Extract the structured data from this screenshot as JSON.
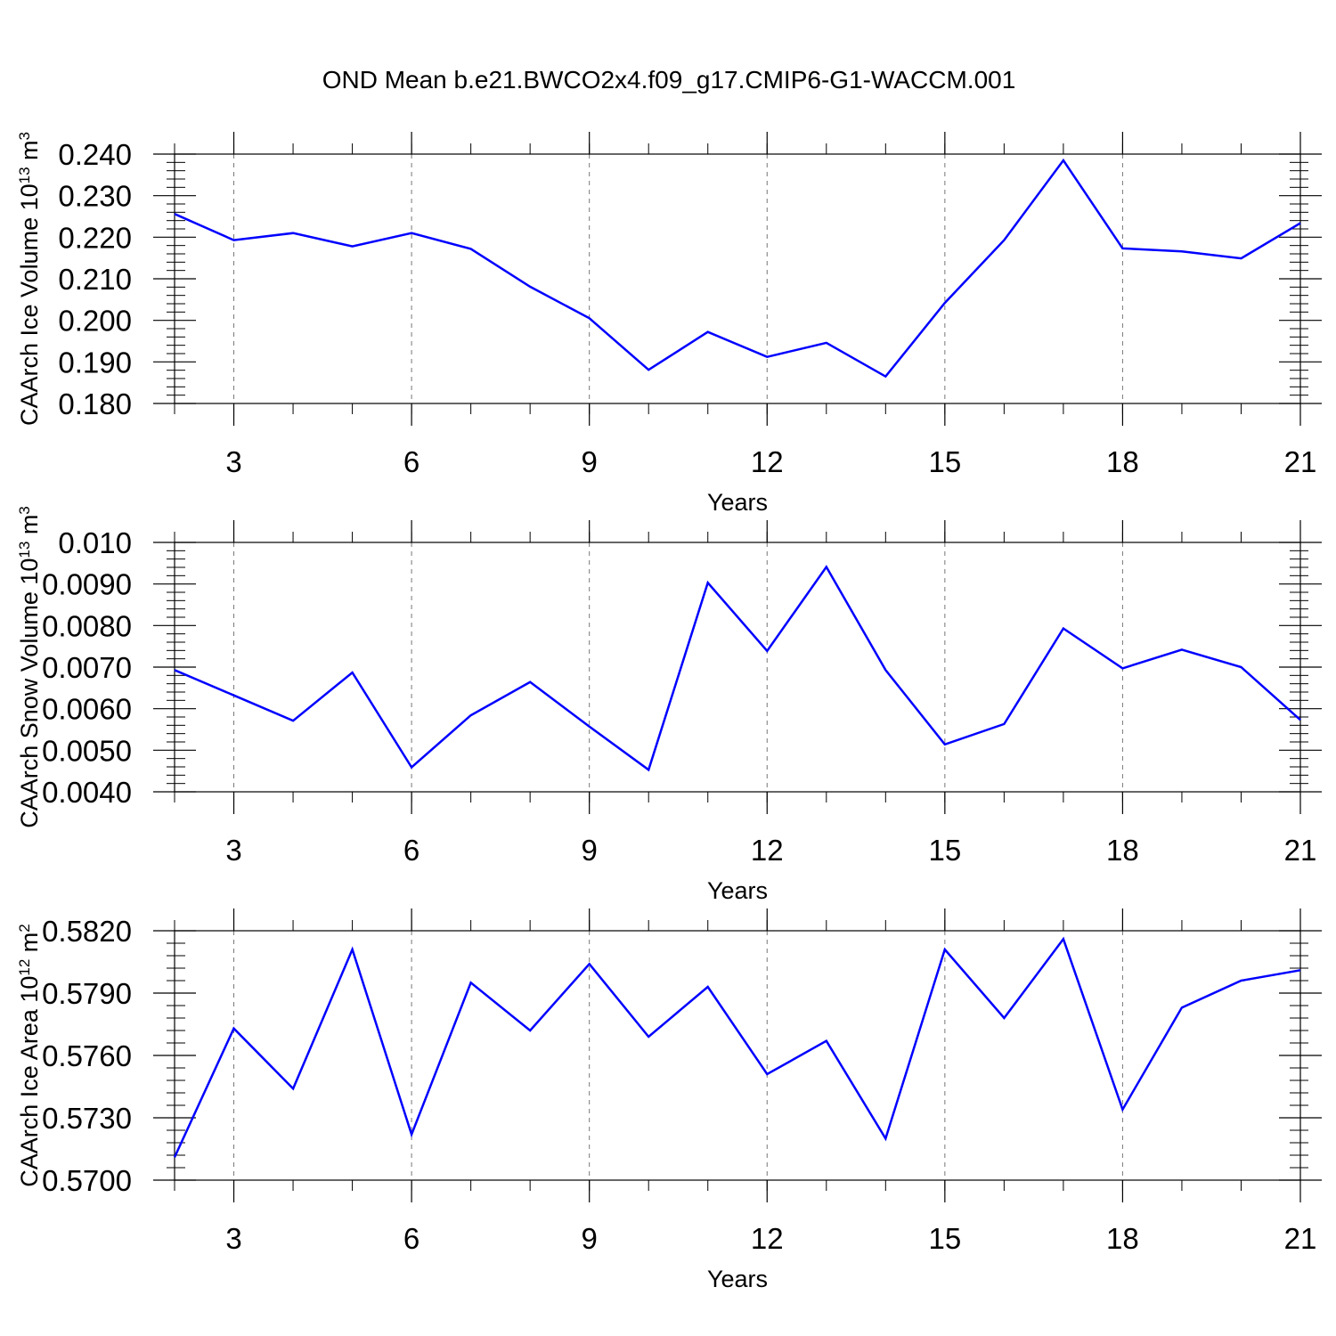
{
  "title": "OND Mean b.e21.BWCO2x4.f09_g17.CMIP6-G1-WACCM.001",
  "line_color": "#0000ff",
  "chart_data": [
    {
      "type": "line",
      "ylabel_main": "CAArch Ice Volume 10",
      "ylabel_exp": "13",
      "ylabel_unit": " m",
      "ylabel_unit_exp": "3",
      "xlabel": "Years",
      "xlim": [
        2,
        21
      ],
      "ylim": [
        0.18,
        0.24
      ],
      "yticks": [
        "0.180",
        "0.190",
        "0.200",
        "0.210",
        "0.220",
        "0.230",
        "0.240"
      ],
      "xticks": [
        "3",
        "6",
        "9",
        "12",
        "15",
        "18",
        "21"
      ],
      "x": [
        2,
        3,
        4,
        5,
        6,
        7,
        8,
        9,
        10,
        11,
        12,
        13,
        14,
        15,
        16,
        17,
        18,
        19,
        20,
        21
      ],
      "y": [
        0.2256,
        0.2193,
        0.221,
        0.2178,
        0.221,
        0.2172,
        0.2081,
        0.2005,
        0.1881,
        0.1972,
        0.1912,
        0.1946,
        0.1865,
        0.2042,
        0.2193,
        0.2385,
        0.2173,
        0.2166,
        0.2149,
        0.2234
      ]
    },
    {
      "type": "line",
      "ylabel_main": "CAArch Snow Volume 10",
      "ylabel_exp": "13",
      "ylabel_unit": " m",
      "ylabel_unit_exp": "3",
      "xlabel": "Years",
      "xlim": [
        2,
        21
      ],
      "ylim": [
        0.004,
        0.01
      ],
      "yticks": [
        "0.0040",
        "0.0050",
        "0.0060",
        "0.0070",
        "0.0080",
        "0.0090",
        "0.010"
      ],
      "xticks": [
        "3",
        "6",
        "9",
        "12",
        "15",
        "18",
        "21"
      ],
      "x": [
        2,
        3,
        4,
        5,
        6,
        7,
        8,
        9,
        10,
        11,
        12,
        13,
        14,
        15,
        16,
        17,
        18,
        19,
        20,
        21
      ],
      "y": [
        0.00693,
        0.00632,
        0.00571,
        0.00687,
        0.00459,
        0.00584,
        0.00664,
        0.00557,
        0.00453,
        0.00903,
        0.00739,
        0.00941,
        0.00693,
        0.00514,
        0.00563,
        0.00793,
        0.00697,
        0.00742,
        0.007,
        0.00573
      ]
    },
    {
      "type": "line",
      "ylabel_main": "CAArch Ice Area 10",
      "ylabel_exp": "12",
      "ylabel_unit": " m",
      "ylabel_unit_exp": "2",
      "xlabel": "Years",
      "xlim": [
        2,
        21
      ],
      "ylim": [
        0.57,
        0.582
      ],
      "yticks": [
        "0.5700",
        "0.5730",
        "0.5760",
        "0.5790",
        "0.5820"
      ],
      "xticks": [
        "3",
        "6",
        "9",
        "12",
        "15",
        "18",
        "21"
      ],
      "x": [
        2,
        3,
        4,
        5,
        6,
        7,
        8,
        9,
        10,
        11,
        12,
        13,
        14,
        15,
        16,
        17,
        18,
        19,
        20,
        21
      ],
      "y": [
        0.5711,
        0.5773,
        0.5744,
        0.5811,
        0.5722,
        0.5795,
        0.5772,
        0.5804,
        0.5769,
        0.5793,
        0.5751,
        0.5767,
        0.572,
        0.5811,
        0.5778,
        0.5816,
        0.5734,
        0.5783,
        0.5796,
        0.5801
      ]
    }
  ]
}
